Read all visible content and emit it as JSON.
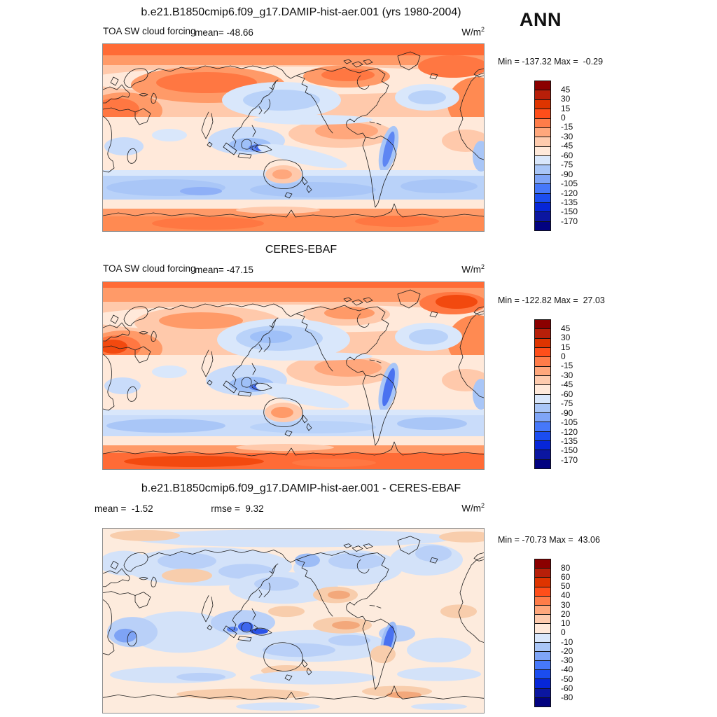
{
  "figure": {
    "season": "ANN",
    "units": "W/m",
    "units_exponent": "2"
  },
  "panels": [
    {
      "title": "b.e21.B1850cmip6.f09_g17.DAMIP-hist-aer.001 (yrs 1980-2004)",
      "variable": "TOA SW cloud forcing",
      "mean_label": "mean= -48.66",
      "minmax_label": "Min = -137.32 Max =  -0.29",
      "colorbar": {
        "ticks": [
          "45",
          "30",
          "15",
          "0",
          "-15",
          "-30",
          "-45",
          "-60",
          "-75",
          "-90",
          "-105",
          "-120",
          "-135",
          "-150",
          "-170"
        ],
        "colors": [
          "#8B0000",
          "#B71F09",
          "#DE3400",
          "#FF4E1A",
          "#FF7C49",
          "#FFA77C",
          "#FECBAE",
          "#FFE9DA",
          "#D9E7FB",
          "#A9C6F7",
          "#7FA5F7",
          "#4678FA",
          "#1B4DF0",
          "#0626D8",
          "#0B16A0",
          "#020280"
        ]
      }
    },
    {
      "title": "CERES-EBAF",
      "variable": "TOA SW cloud forcing",
      "mean_label": "mean= -47.15",
      "minmax_label": "Min = -122.82 Max =  27.03",
      "colorbar": {
        "ticks": [
          "45",
          "30",
          "15",
          "0",
          "-15",
          "-30",
          "-45",
          "-60",
          "-75",
          "-90",
          "-105",
          "-120",
          "-135",
          "-150",
          "-170"
        ],
        "colors": [
          "#8B0000",
          "#B71F09",
          "#DE3400",
          "#FF4E1A",
          "#FF7C49",
          "#FFA77C",
          "#FECBAE",
          "#FFE9DA",
          "#D9E7FB",
          "#A9C6F7",
          "#7FA5F7",
          "#4678FA",
          "#1B4DF0",
          "#0626D8",
          "#0B16A0",
          "#020280"
        ]
      }
    },
    {
      "title": "b.e21.B1850cmip6.f09_g17.DAMIP-hist-aer.001 - CERES-EBAF",
      "mean_label": "mean =  -1.52",
      "rmse_label": "rmse =  9.32",
      "minmax_label": "Min = -70.73 Max =  43.06",
      "colorbar": {
        "ticks": [
          "80",
          "60",
          "50",
          "40",
          "30",
          "20",
          "10",
          "0",
          "-10",
          "-20",
          "-30",
          "-40",
          "-50",
          "-60",
          "-80"
        ],
        "colors": [
          "#8B0000",
          "#B71F09",
          "#DE3400",
          "#FF4E1A",
          "#FF7C49",
          "#FFA77C",
          "#FECBAE",
          "#FFE9DA",
          "#D9E7FB",
          "#A9C6F7",
          "#7FA5F7",
          "#4678FA",
          "#1B4DF0",
          "#0626D8",
          "#0B16A0",
          "#020280"
        ]
      }
    }
  ],
  "chart_data": [
    {
      "type": "heatmap",
      "title": "b.e21.B1850cmip6.f09_g17.DAMIP-hist-aer.001 (yrs 1980-2004)",
      "field": "TOA SW cloud forcing, annual mean (ANN)",
      "units": "W/m^2",
      "projection": "global cylindrical equidistant, Pacific-centered (lon 0-360E, lat 90S-90N)",
      "stats": {
        "mean": -48.66,
        "min": -137.32,
        "max": -0.29
      },
      "contour_levels": [
        45,
        30,
        15,
        0,
        -15,
        -30,
        -45,
        -60,
        -75,
        -90,
        -105,
        -120,
        -135,
        -150,
        -170
      ],
      "palette": [
        "#8B0000",
        "#B71F09",
        "#DE3400",
        "#FF4E1A",
        "#FF7C49",
        "#FFA77C",
        "#FECBAE",
        "#FFE9DA",
        "#D9E7FB",
        "#A9C6F7",
        "#7FA5F7",
        "#4678FA",
        "#1B4DF0",
        "#0626D8",
        "#0B16A0",
        "#020280"
      ],
      "legend_position": "right",
      "pattern_summary": "Weak negative forcing (orange) over polar latitudes, deserts and high northern continents; strong negative forcing (blue) over North Pacific, North Atlantic, Maritime Continent, Peru coast and Southern Ocean storm track."
    },
    {
      "type": "heatmap",
      "title": "CERES-EBAF",
      "field": "TOA SW cloud forcing, annual mean (ANN)",
      "units": "W/m^2",
      "projection": "global cylindrical equidistant, Pacific-centered (lon 0-360E, lat 90S-90N)",
      "stats": {
        "mean": -47.15,
        "min": -122.82,
        "max": 27.03
      },
      "contour_levels": [
        45,
        30,
        15,
        0,
        -15,
        -30,
        -45,
        -60,
        -75,
        -90,
        -105,
        -120,
        -135,
        -150,
        -170
      ],
      "palette": [
        "#8B0000",
        "#B71F09",
        "#DE3400",
        "#FF4E1A",
        "#FF7C49",
        "#FFA77C",
        "#FECBAE",
        "#FFE9DA",
        "#D9E7FB",
        "#A9C6F7",
        "#7FA5F7",
        "#4678FA",
        "#1B4DF0",
        "#0626D8",
        "#0B16A0",
        "#020280"
      ],
      "legend_position": "right",
      "pattern_summary": "Observed CERES-EBAF field: similar zonal structure with orange high latitudes and Antarctica, blue midlatitude storm tracks, Maritime Continent and Peru stratocumulus region."
    },
    {
      "type": "heatmap",
      "title": "b.e21.B1850cmip6.f09_g17.DAMIP-hist-aer.001 - CERES-EBAF",
      "field": "TOA SW cloud forcing difference, annual mean (ANN)",
      "units": "W/m^2",
      "projection": "global cylindrical equidistant, Pacific-centered (lon 0-360E, lat 90S-90N)",
      "stats": {
        "mean": -1.52,
        "rmse": 9.32,
        "min": -70.73,
        "max": 43.06
      },
      "contour_levels": [
        80,
        60,
        50,
        40,
        30,
        20,
        10,
        0,
        -10,
        -20,
        -30,
        -40,
        -50,
        -60,
        -80
      ],
      "palette": [
        "#8B0000",
        "#B71F09",
        "#DE3400",
        "#FF4E1A",
        "#FF7C49",
        "#FFA77C",
        "#FECBAE",
        "#FFE9DA",
        "#D9E7FB",
        "#A9C6F7",
        "#7FA5F7",
        "#4678FA",
        "#1B4DF0",
        "#0626D8",
        "#0B16A0",
        "#020280"
      ],
      "legend_position": "right",
      "pattern_summary": "Mostly small differences (pale); model too negative (blue) over Maritime Continent, subtropical oceans, southern Africa and Peru coast; weakly positive (orange) patches over eastern Pacific, Atlantic and Antarctic coast."
    }
  ]
}
